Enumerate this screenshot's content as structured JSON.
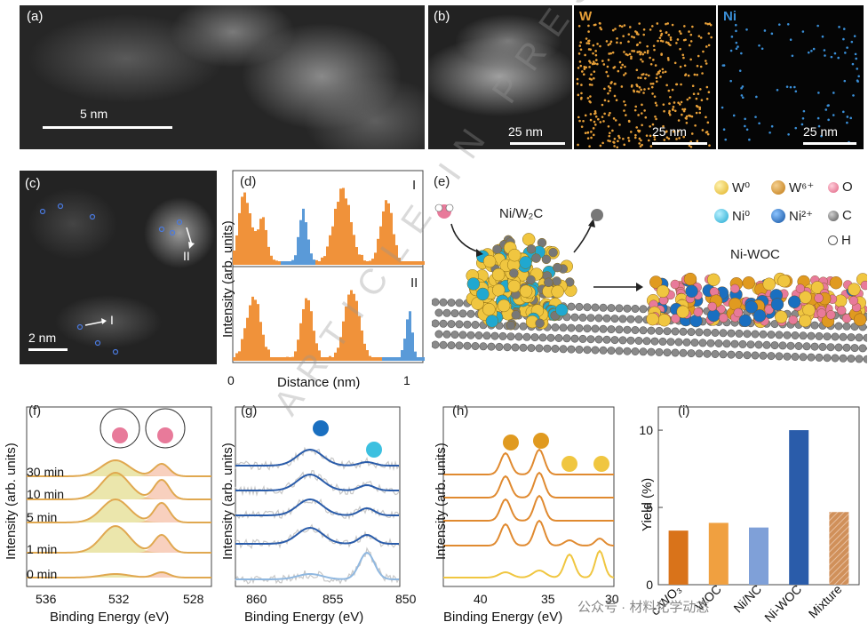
{
  "panels": {
    "a": {
      "label": "(a)",
      "scalebar": "5 nm"
    },
    "b": {
      "label": "(b)",
      "scalebar_1": "25 nm",
      "scalebar_2": "25 nm",
      "scalebar_3": "25 nm",
      "map_w": "W",
      "map_ni": "Ni",
      "color_w": "#e8a038",
      "color_ni": "#3a8fd8"
    },
    "c": {
      "label": "(c)",
      "scalebar": "2 nm",
      "line_1": "I",
      "line_2": "II"
    },
    "d": {
      "label": "(d)",
      "trace_1": "I",
      "trace_2": "II"
    },
    "e": {
      "label": "(e)",
      "title_left": "Ni/W₂C",
      "title_right": "Ni-WOC",
      "legend": [
        {
          "symbol": "W⁰",
          "color": "#f0c640"
        },
        {
          "symbol": "W⁶⁺",
          "color": "#e09a20"
        },
        {
          "symbol": "O",
          "color": "#e87a9a"
        },
        {
          "symbol": "Ni⁰",
          "color": "#3cc0e0"
        },
        {
          "symbol": "Ni²⁺",
          "color": "#1a6fc0"
        },
        {
          "symbol": "C",
          "color": "#777777"
        },
        {
          "symbol": "H",
          "color": "#ffffff"
        }
      ]
    },
    "f": {
      "label": "(f)",
      "times": [
        "30 min",
        "10 min",
        "5 min",
        "1 min",
        "0 min"
      ]
    },
    "g": {
      "label": "(g)"
    },
    "h": {
      "label": "(h)"
    },
    "i": {
      "label": "(i)"
    }
  },
  "axes": {
    "d_x": "Distance (nm)",
    "d_y": "Intensity (arb. units)",
    "d_xticks": [
      "0",
      "1"
    ],
    "fgh_x": "Binding Energy (eV)",
    "fgh_y": "Intensity (arb. units)",
    "f_xticks": [
      "536",
      "532",
      "528"
    ],
    "g_xticks": [
      "860",
      "855",
      "850"
    ],
    "h_xticks": [
      "40",
      "35",
      "30"
    ],
    "i_y": "Yield (%)"
  },
  "chart_data": [
    {
      "type": "bar",
      "panel": "i",
      "categories": [
        "c-WO₃",
        "WOC",
        "Ni/NC",
        "Ni-WOC",
        "Mixture"
      ],
      "values": [
        3.5,
        4.0,
        3.7,
        10.0,
        4.7
      ],
      "colors": [
        "#d9731a",
        "#f0a040",
        "#7fa0d8",
        "#2a5caa",
        "#d0905a"
      ],
      "ylabel": "Yield (%)",
      "yticks": [
        "0",
        "5",
        "10"
      ],
      "ylim": [
        0,
        11.5
      ]
    }
  ],
  "watermark": "ARTICLE IN PRESS",
  "footer": "公众号 · 材料化学动态"
}
